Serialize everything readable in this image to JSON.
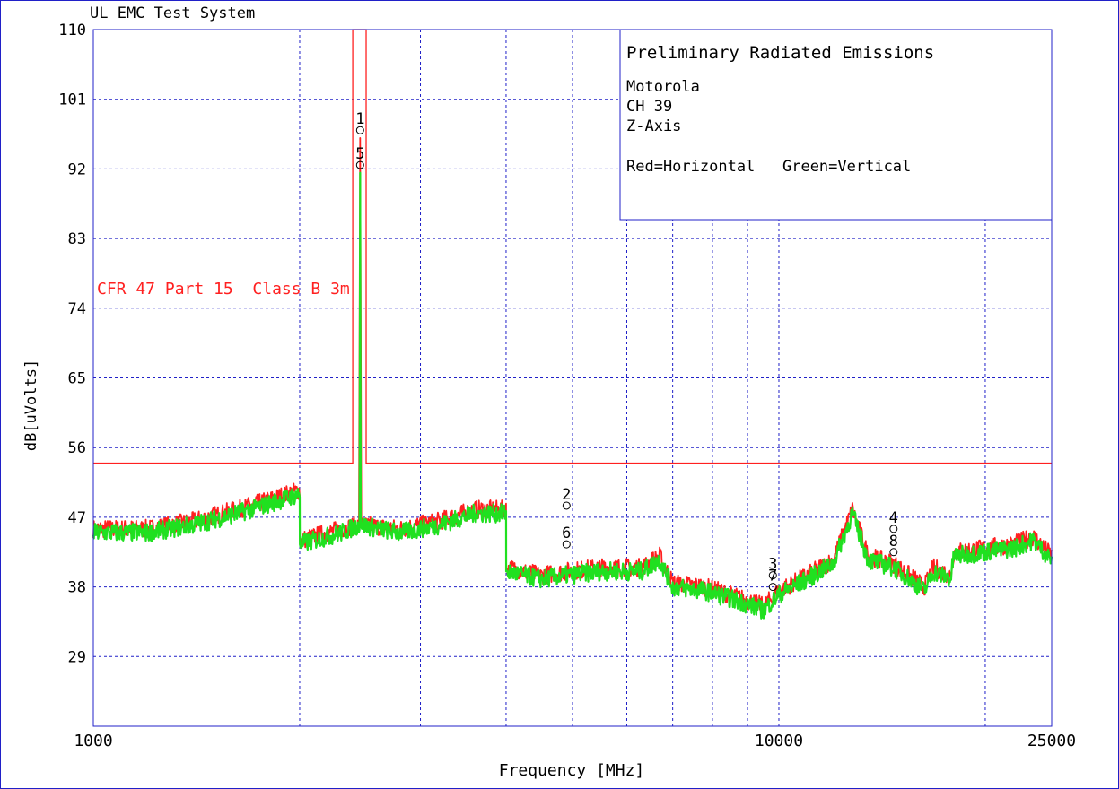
{
  "header": {
    "system_title": "UL EMC Test System"
  },
  "chart_data": {
    "type": "line",
    "title": "Preliminary Radiated Emissions",
    "subtitle_lines": [
      "Motorola",
      "CH 39",
      "Z-Axis"
    ],
    "legend_text": "Red=Horizontal   Green=Vertical",
    "xlabel": "Frequency [MHz]",
    "ylabel": "dB[uVolts]",
    "x_scale": "log",
    "xlim": [
      1000,
      25000
    ],
    "ylim": [
      20,
      110
    ],
    "x_tick_labels": [
      "1000",
      "10000",
      "25000"
    ],
    "y_ticks": [
      110,
      101,
      92,
      83,
      74,
      65,
      56,
      47,
      38,
      29
    ],
    "x_gridlines": [
      1000,
      2000,
      3000,
      4000,
      5000,
      6000,
      7000,
      8000,
      9000,
      10000,
      20000
    ],
    "grid": true,
    "limit_line": {
      "label": "CFR 47 Part 15  Class B 3m",
      "color": "#ff2020",
      "level": 54,
      "restricted_band": [
        2390,
        2500
      ],
      "restricted_level": 110
    },
    "markers": [
      {
        "label": "1",
        "freq": 2450,
        "value": 97.0
      },
      {
        "label": "5",
        "freq": 2450,
        "value": 92.5
      },
      {
        "label": "2",
        "freq": 4900,
        "value": 48.5
      },
      {
        "label": "6",
        "freq": 4900,
        "value": 43.5
      },
      {
        "label": "3",
        "freq": 9800,
        "value": 39.5
      },
      {
        "label": "7",
        "freq": 9800,
        "value": 38.0
      },
      {
        "label": "4",
        "freq": 14700,
        "value": 45.5
      },
      {
        "label": "8",
        "freq": 14700,
        "value": 42.5
      }
    ],
    "series": [
      {
        "name": "Horizontal",
        "color": "#ff2020",
        "points": [
          [
            1000,
            45.5
          ],
          [
            1200,
            45.5
          ],
          [
            1400,
            46.5
          ],
          [
            1700,
            48.5
          ],
          [
            2000,
            50.5
          ],
          [
            2001,
            44.0
          ],
          [
            2300,
            45.5
          ],
          [
            2440,
            46.0
          ],
          [
            2450,
            96.0
          ],
          [
            2460,
            46.0
          ],
          [
            2800,
            45.5
          ],
          [
            3200,
            46.5
          ],
          [
            3600,
            48.0
          ],
          [
            4000,
            48.0
          ],
          [
            4001,
            40.5
          ],
          [
            4500,
            39.5
          ],
          [
            4900,
            40.0
          ],
          [
            5500,
            40.5
          ],
          [
            6300,
            40.5
          ],
          [
            6700,
            42.0
          ],
          [
            7000,
            38.5
          ],
          [
            7800,
            38.0
          ],
          [
            8500,
            37.0
          ],
          [
            9500,
            35.5
          ],
          [
            10000,
            37.5
          ],
          [
            11000,
            39.5
          ],
          [
            12000,
            41.5
          ],
          [
            12800,
            48.0
          ],
          [
            13500,
            42.0
          ],
          [
            14700,
            41.0
          ],
          [
            15500,
            39.5
          ],
          [
            16300,
            38.0
          ],
          [
            16800,
            40.5
          ],
          [
            17800,
            39.5
          ],
          [
            18000,
            42.5
          ],
          [
            20000,
            43.0
          ],
          [
            22000,
            43.5
          ],
          [
            23500,
            44.5
          ],
          [
            25000,
            42.0
          ]
        ]
      },
      {
        "name": "Vertical",
        "color": "#20e020",
        "points": [
          [
            1000,
            45.0
          ],
          [
            1200,
            45.0
          ],
          [
            1400,
            46.0
          ],
          [
            1700,
            48.0
          ],
          [
            2000,
            50.0
          ],
          [
            2001,
            43.5
          ],
          [
            2300,
            45.0
          ],
          [
            2445,
            46.0
          ],
          [
            2450,
            91.5
          ],
          [
            2455,
            46.0
          ],
          [
            2800,
            45.0
          ],
          [
            3200,
            46.0
          ],
          [
            3600,
            47.5
          ],
          [
            4000,
            47.5
          ],
          [
            4001,
            40.0
          ],
          [
            4500,
            39.0
          ],
          [
            4900,
            39.5
          ],
          [
            5500,
            40.0
          ],
          [
            6300,
            40.0
          ],
          [
            6700,
            41.5
          ],
          [
            7000,
            38.0
          ],
          [
            7800,
            37.5
          ],
          [
            8500,
            36.5
          ],
          [
            9500,
            35.0
          ],
          [
            10000,
            37.0
          ],
          [
            11000,
            39.0
          ],
          [
            12000,
            41.0
          ],
          [
            12800,
            47.5
          ],
          [
            13500,
            41.5
          ],
          [
            14700,
            40.5
          ],
          [
            15500,
            39.0
          ],
          [
            16300,
            37.5
          ],
          [
            16800,
            40.0
          ],
          [
            17800,
            39.0
          ],
          [
            18000,
            42.0
          ],
          [
            20000,
            42.5
          ],
          [
            22000,
            43.0
          ],
          [
            23500,
            44.0
          ],
          [
            25000,
            41.5
          ]
        ]
      }
    ]
  }
}
